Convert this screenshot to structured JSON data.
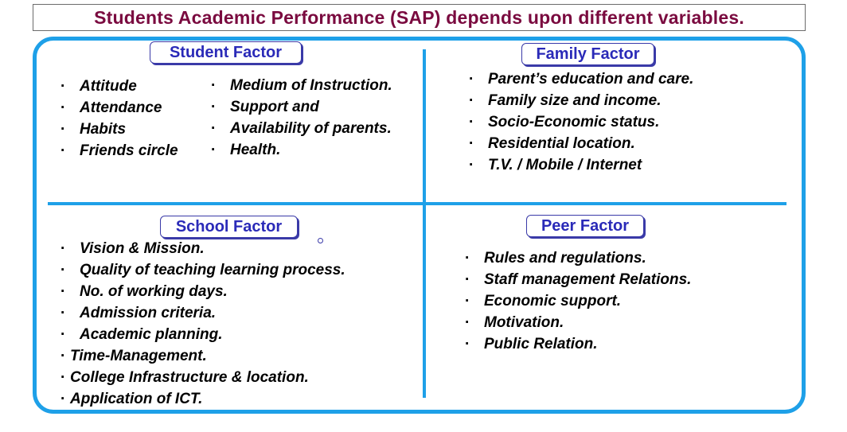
{
  "title": "Students Academic Performance (SAP) depends upon different variables.",
  "bullet": "·",
  "colors": {
    "title": "#7a0a3f",
    "frame": "#1ea0e8",
    "label": "#2a2ab8"
  },
  "quadrants": {
    "student": {
      "label": "Student Factor",
      "col1": [
        "Attitude",
        "Attendance",
        "Habits",
        "Friends circle"
      ],
      "col2": [
        "Medium of Instruction.",
        "Support  and",
        "Availability of parents.",
        "Health."
      ]
    },
    "family": {
      "label": "Family Factor",
      "items": [
        "Parent’s education and care.",
        "Family size and income.",
        "Socio-Economic status.",
        "Residential location.",
        "T.V. / Mobile / Internet"
      ]
    },
    "school": {
      "label": "School Factor",
      "items": [
        "Vision & Mission.",
        "Quality of teaching learning process.",
        "No. of working days.",
        "Admission criteria.",
        "Academic planning."
      ],
      "items_tight": [
        "Time-Management.",
        "College Infrastructure & location.",
        "Application of ICT."
      ]
    },
    "peer": {
      "label": "Peer Factor",
      "items": [
        "Rules and regulations.",
        "Staff management Relations.",
        "Economic support.",
        "Motivation.",
        "Public Relation."
      ]
    }
  }
}
